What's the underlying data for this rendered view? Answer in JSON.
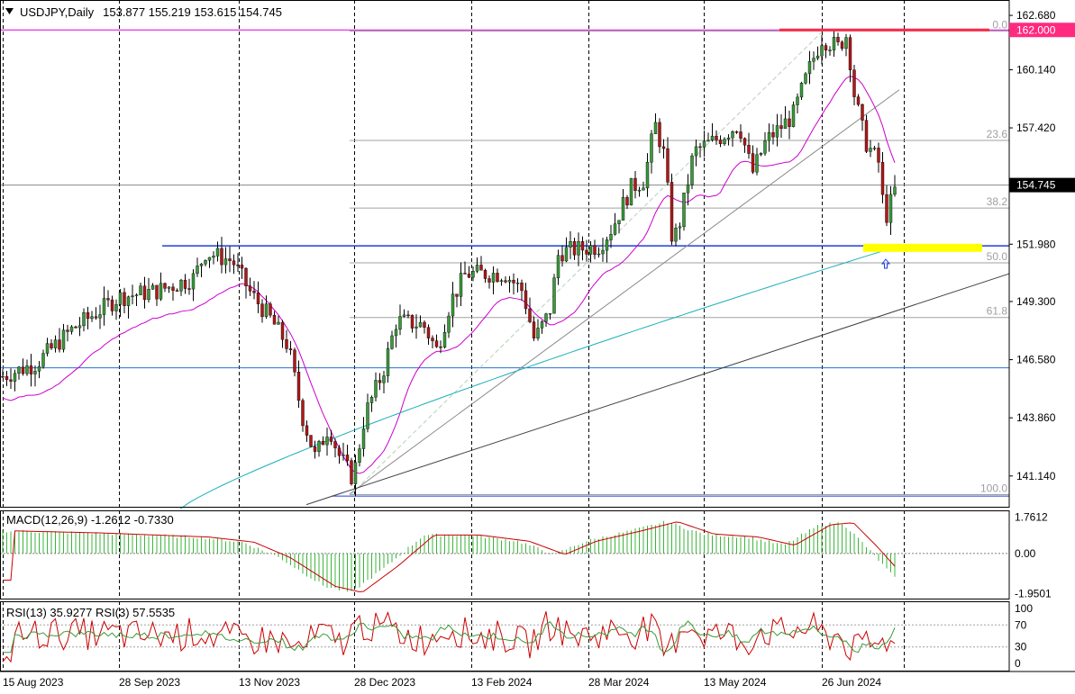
{
  "chart_data": {
    "type": "candlestick",
    "title": {
      "symbol": "USDJPY,Daily",
      "ohlc": "153.877 155.219 153.615 154.745"
    },
    "price_scale": {
      "ylim": [
        139.7,
        163.4
      ],
      "ticks": [
        "162.680",
        "160.140",
        "157.420",
        "154.745",
        "151.980",
        "149.300",
        "146.580",
        "143.860",
        "141.140"
      ],
      "tick_values": [
        162.68,
        160.14,
        157.42,
        154.745,
        151.98,
        149.3,
        146.58,
        143.86,
        141.14
      ]
    },
    "price_label": {
      "text": "162.000",
      "value": 162.0,
      "color": "#ff2a7f"
    },
    "current_label": {
      "text": "154.745",
      "value": 154.745
    },
    "x_ticks": [
      "15 Aug 2023",
      "28 Sep 2023",
      "13 Nov 2023",
      "28 Dec 2023",
      "13 Feb 2024",
      "28 Mar 2024",
      "13 May 2024",
      "26 Jun 2024"
    ],
    "fibonacci": {
      "levels": [
        "0.0",
        "23.6",
        "38.2",
        "50.0",
        "61.8",
        "100.0"
      ],
      "high": 161.95,
      "low": 140.27
    },
    "horizontal_lines": [
      {
        "value": 162.0,
        "color": "#e000e0"
      },
      {
        "value": 154.745,
        "color": "#888888"
      },
      {
        "value": 151.9,
        "color": "#1f3fd6"
      },
      {
        "value": 146.2,
        "color": "#2a6fd0"
      },
      {
        "value": 140.2,
        "color": "#1f3fd6"
      }
    ],
    "annotation_colors": {
      "resistance": "#ff2a4a",
      "zone": "#ffff00",
      "arrow": "#1f3fd6"
    },
    "candle_colors": {
      "up": "#3a9a3a",
      "down": "#b01818",
      "wick": "#000000"
    },
    "ma_colors": {
      "fast": "#cc00cc",
      "slow": "#1ab0b8"
    },
    "macd": {
      "label": "MACD(12,26,9) -1.2612 -0.7330",
      "ticks": [
        "1.7612",
        "0.00",
        "-1.9501"
      ],
      "tick_values": [
        1.7612,
        0,
        -1.9501
      ],
      "ylim": [
        -2.2,
        2.1
      ],
      "histogram_color": "#3cb43c",
      "signal_color": "#cc0000"
    },
    "rsi": {
      "label": "RSI(13) 35.9277  RSI(3) 57.5535",
      "ticks": [
        "100",
        "70",
        "30",
        "0"
      ],
      "tick_values": [
        100,
        70,
        30,
        0
      ],
      "ylim": [
        0,
        100
      ],
      "fast_color": "#cc0000",
      "slow_color": "#3a9a3a"
    },
    "grid": true
  }
}
